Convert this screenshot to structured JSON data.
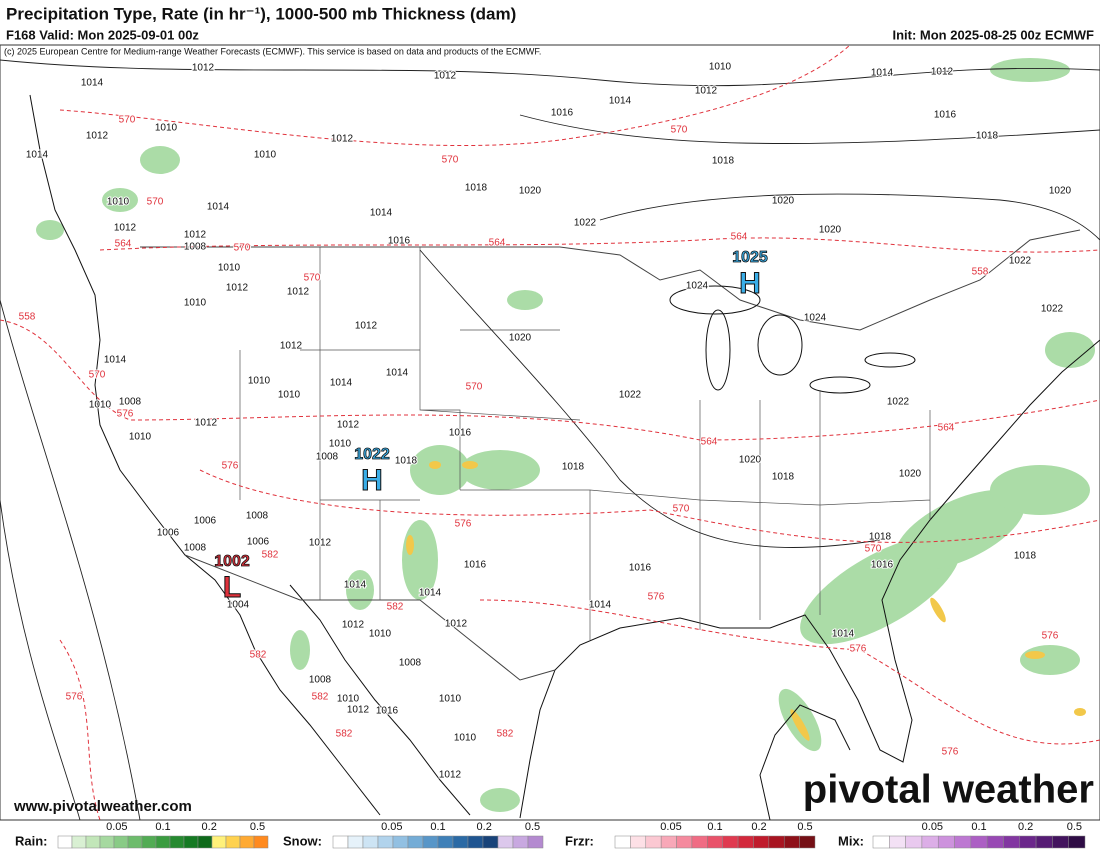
{
  "header": {
    "title": "Precipitation Type, Rate (in hr⁻¹), 1000-500 mb Thickness (dam)",
    "valid": "F168 Valid: Mon 2025-09-01 00z",
    "init": "Init: Mon 2025-08-25 00z ECMWF",
    "copyright": "(c) 2025 European Centre for Medium-range Weather Forecasts (ECMWF). This service is based on data and products of the ECMWF."
  },
  "map": {
    "isobar_labels": [
      1014,
      1012,
      1012,
      1010,
      1012,
      1014,
      1016,
      1016,
      1018,
      1018,
      1020,
      1020,
      1020,
      1012,
      1010,
      1014,
      1010,
      1012,
      1018,
      1020,
      1022,
      1014,
      1016,
      1024,
      1024,
      1022,
      1022,
      1020,
      1022,
      1022,
      1020,
      1018,
      1020,
      1018,
      1016,
      1018,
      1012,
      1014,
      1014,
      1012,
      1010,
      1010,
      1012,
      1010,
      1008,
      1010,
      1014,
      1010,
      1012,
      1012,
      1010,
      1008,
      1012,
      1014,
      1012,
      1010,
      1006,
      1006,
      1008,
      1004,
      1008,
      1006,
      1012,
      1014,
      1014,
      1012,
      1012,
      1010,
      1008,
      1008,
      1010,
      1012,
      1016,
      1010,
      1010,
      1012,
      1014,
      1016,
      1016,
      1018,
      1016,
      1018,
      1014,
      1012,
      1014,
      1008,
      1010,
      1012
    ],
    "thickness_labels": [
      570,
      570,
      570,
      570,
      564,
      570,
      570,
      564,
      564,
      558,
      558,
      570,
      570,
      564,
      564,
      576,
      570,
      576,
      570,
      582,
      576,
      582,
      582,
      576,
      582,
      576,
      582,
      582,
      576,
      576,
      576
    ],
    "centers": [
      {
        "letter": "H",
        "value": 1025
      },
      {
        "letter": "H",
        "value": 1022
      },
      {
        "letter": "L",
        "value": 1002
      }
    ]
  },
  "footer": {
    "website": "www.pivotalweather.com",
    "logo": "pivotal weather"
  },
  "legend": [
    {
      "name": "Rain:",
      "ticks": [
        0.05,
        0.1,
        0.2,
        0.5
      ],
      "colors": [
        "#ffffff",
        "#d9f0d3",
        "#c2e6b9",
        "#a6d9a0",
        "#89cb86",
        "#6dbc6c",
        "#52ac54",
        "#3a9c40",
        "#268a30",
        "#157a23",
        "#0e6a1a",
        "#fff17a",
        "#ffd24f",
        "#ffaa33",
        "#ff8a1f"
      ]
    },
    {
      "name": "Snow:",
      "ticks": [
        0.05,
        0.1,
        0.2,
        0.5
      ],
      "colors": [
        "#ffffff",
        "#e6f2fa",
        "#cde4f4",
        "#b1d3ec",
        "#92c0e2",
        "#74acd6",
        "#5896c8",
        "#3f80b8",
        "#2b6aa5",
        "#1f5591",
        "#184379",
        "#dcc8ec",
        "#c8a8e0",
        "#b48ad0"
      ]
    },
    {
      "name": "Frzr:",
      "ticks": [
        0.05,
        0.1,
        0.2,
        0.5
      ],
      "colors": [
        "#ffffff",
        "#fde0e6",
        "#fbc8d2",
        "#f8a8b8",
        "#f58a9e",
        "#f06c84",
        "#e9526a",
        "#e03a50",
        "#d3283c",
        "#c01b2c",
        "#a81421",
        "#8e1019",
        "#751016"
      ]
    },
    {
      "name": "Mix:",
      "ticks": [
        0.05,
        0.1,
        0.2,
        0.5
      ],
      "colors": [
        "#ffffff",
        "#f3e1f5",
        "#e9c9ef",
        "#dcaee7",
        "#cd92dd",
        "#bd78d2",
        "#ac5fc4",
        "#9849b4",
        "#8236a1",
        "#6b278b",
        "#561c74",
        "#43145e",
        "#2f0d45"
      ]
    }
  ]
}
